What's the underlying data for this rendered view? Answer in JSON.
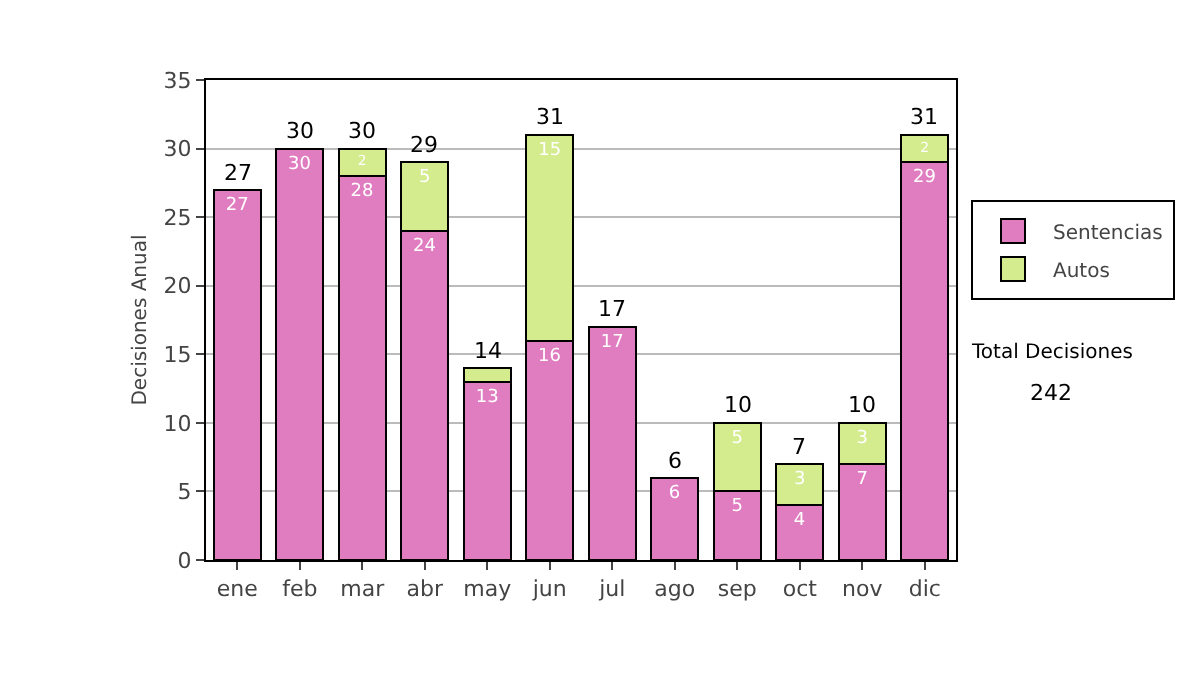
{
  "chart_data": {
    "type": "bar",
    "ylabel": "Decisiones Anual",
    "categories": [
      "ene",
      "feb",
      "mar",
      "abr",
      "may",
      "jun",
      "jul",
      "ago",
      "sep",
      "oct",
      "nov",
      "dic"
    ],
    "stacked": true,
    "series": [
      {
        "name": "Sentencias",
        "color": "#e07cc0",
        "values": [
          27,
          30,
          28,
          24,
          13,
          16,
          17,
          6,
          5,
          4,
          7,
          29
        ],
        "value_labels": [
          "27",
          "30",
          "28",
          "24",
          "13",
          "16",
          "17",
          "6",
          "5",
          "4",
          "7",
          "29"
        ]
      },
      {
        "name": "Autos",
        "color": "#d4eb8e",
        "values": [
          null,
          null,
          2,
          5,
          1,
          15,
          null,
          null,
          5,
          3,
          3,
          2
        ],
        "value_labels": [
          null,
          null,
          "2",
          "5",
          null,
          "15",
          null,
          null,
          "5",
          "3",
          "3",
          "2"
        ]
      }
    ],
    "totals": [
      "27",
      "30",
      "30",
      "29",
      "14",
      "31",
      "17",
      "6",
      "10",
      "7",
      "10",
      "31"
    ],
    "ylim": [
      0,
      35
    ],
    "yticks": [
      0,
      5,
      10,
      15,
      20,
      25,
      30,
      35
    ],
    "grid": "y",
    "legend": "right",
    "annotations": [
      "Total Decisiones",
      "242"
    ]
  }
}
